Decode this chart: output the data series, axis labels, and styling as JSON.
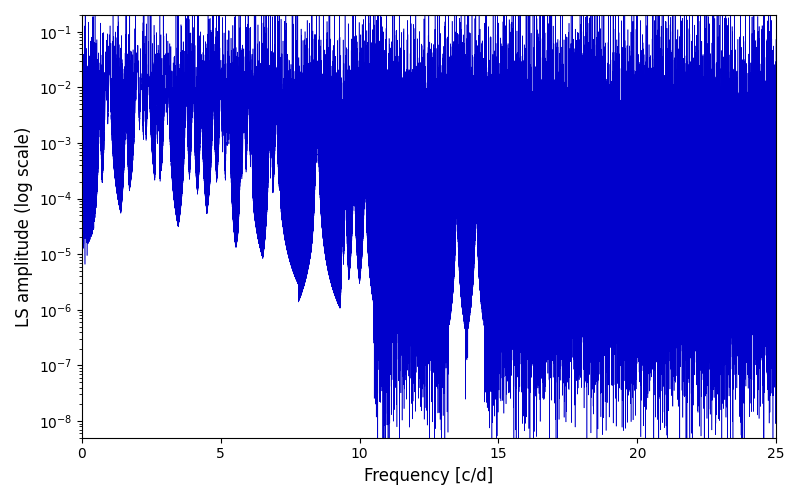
{
  "title": "",
  "xlabel": "Frequency [c/d]",
  "ylabel": "LS amplitude (log scale)",
  "xlim": [
    0,
    25
  ],
  "ylim": [
    5e-09,
    0.2
  ],
  "line_color": "#0000cc",
  "line_width": 0.4,
  "yscale": "log",
  "figsize": [
    8.0,
    5.0
  ],
  "dpi": 100,
  "background_color": "#ffffff",
  "n_points": 80000,
  "freq_max": 25.0,
  "seed": 12345
}
